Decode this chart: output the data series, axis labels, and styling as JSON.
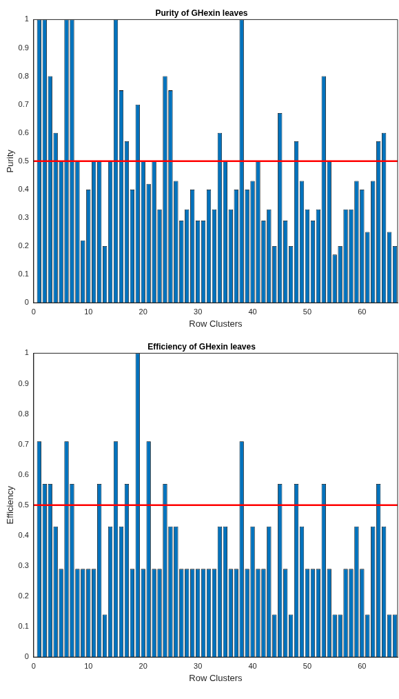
{
  "chart_data": [
    {
      "type": "bar",
      "title": "Purity of GHexin leaves",
      "xlabel": "Row Clusters",
      "ylabel": "Purity",
      "color": "#0072bd",
      "x": [
        1,
        2,
        3,
        4,
        5,
        6,
        7,
        8,
        9,
        10,
        11,
        12,
        13,
        14,
        15,
        16,
        17,
        18,
        19,
        20,
        21,
        22,
        23,
        24,
        25,
        26,
        27,
        28,
        29,
        30,
        31,
        32,
        33,
        34,
        35,
        36,
        37,
        38,
        39,
        40,
        41,
        42,
        43,
        44,
        45,
        46,
        47,
        48,
        49,
        50,
        51,
        52,
        53,
        54,
        55,
        56,
        57,
        58,
        59,
        60,
        61,
        62,
        63,
        64,
        65,
        66
      ],
      "values": [
        1,
        1,
        0.8,
        0.6,
        0.5,
        1,
        1,
        0.5,
        0.22,
        0.4,
        0.5,
        0.5,
        0.2,
        0.5,
        1,
        0.75,
        0.57,
        0.4,
        0.7,
        0.5,
        0.42,
        0.5,
        0.33,
        0.8,
        0.75,
        0.43,
        0.29,
        0.33,
        0.4,
        0.29,
        0.29,
        0.4,
        0.33,
        0.6,
        0.5,
        0.33,
        0.4,
        1,
        0.4,
        0.43,
        0.5,
        0.29,
        0.33,
        0.2,
        0.67,
        0.29,
        0.2,
        0.57,
        0.43,
        0.33,
        0.29,
        0.33,
        0.8,
        0.5,
        0.17,
        0.2,
        0.33,
        0.33,
        0.43,
        0.4,
        0.25,
        0.43,
        0.57,
        0.6,
        0.25,
        0.2
      ],
      "xlim": [
        0,
        66.5
      ],
      "xticks": [
        0,
        10,
        20,
        30,
        40,
        50,
        60
      ],
      "ylim": [
        0,
        1
      ],
      "yticks": [
        0,
        0.1,
        0.2,
        0.3,
        0.4,
        0.5,
        0.6,
        0.7,
        0.8,
        0.9,
        1
      ],
      "ref_lines": [
        {
          "axis": "y",
          "value": 0.5,
          "color": "#ff0000"
        }
      ]
    },
    {
      "type": "bar",
      "title": "Efficiency of GHexin leaves",
      "xlabel": "Row Clusters",
      "ylabel": "Efficiency",
      "color": "#0072bd",
      "x": [
        1,
        2,
        3,
        4,
        5,
        6,
        7,
        8,
        9,
        10,
        11,
        12,
        13,
        14,
        15,
        16,
        17,
        18,
        19,
        20,
        21,
        22,
        23,
        24,
        25,
        26,
        27,
        28,
        29,
        30,
        31,
        32,
        33,
        34,
        35,
        36,
        37,
        38,
        39,
        40,
        41,
        42,
        43,
        44,
        45,
        46,
        47,
        48,
        49,
        50,
        51,
        52,
        53,
        54,
        55,
        56,
        57,
        58,
        59,
        60,
        61,
        62,
        63,
        64,
        65,
        66
      ],
      "values": [
        0.71,
        0.57,
        0.57,
        0.43,
        0.29,
        0.71,
        0.57,
        0.29,
        0.29,
        0.29,
        0.29,
        0.57,
        0.14,
        0.43,
        0.71,
        0.43,
        0.57,
        0.29,
        1,
        0.29,
        0.71,
        0.29,
        0.29,
        0.57,
        0.43,
        0.43,
        0.29,
        0.29,
        0.29,
        0.29,
        0.29,
        0.29,
        0.29,
        0.43,
        0.43,
        0.29,
        0.29,
        0.71,
        0.29,
        0.43,
        0.29,
        0.29,
        0.43,
        0.14,
        0.57,
        0.29,
        0.14,
        0.57,
        0.43,
        0.29,
        0.29,
        0.29,
        0.57,
        0.29,
        0.14,
        0.14,
        0.29,
        0.29,
        0.43,
        0.29,
        0.14,
        0.43,
        0.57,
        0.43,
        0.14,
        0.14
      ],
      "xlim": [
        0,
        66.5
      ],
      "xticks": [
        0,
        10,
        20,
        30,
        40,
        50,
        60
      ],
      "ylim": [
        0,
        1
      ],
      "yticks": [
        0,
        0.1,
        0.2,
        0.3,
        0.4,
        0.5,
        0.6,
        0.7,
        0.8,
        0.9,
        1
      ],
      "ref_lines": [
        {
          "axis": "y",
          "value": 0.5,
          "color": "#ff0000"
        }
      ]
    }
  ]
}
